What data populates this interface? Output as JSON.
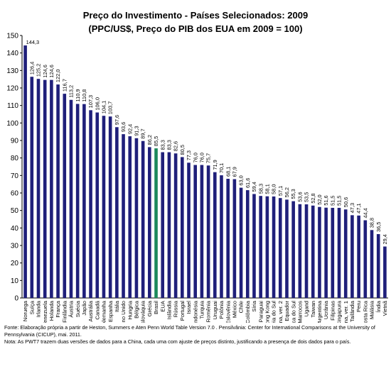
{
  "chart_data": {
    "type": "bar",
    "title": "Preço do Investimento - Países Selecionados: 2009",
    "subtitle": "(PPC/US$, Preço do PIB dos EUA em 2009 = 100)",
    "categories": [
      "Noruega",
      "Suíça",
      "Irlanda",
      "Venezuela",
      "Holanda",
      "França",
      "Finlândia",
      "Áustria",
      "Suécia",
      "Japão",
      "Austrália",
      "Canadá",
      "Alemanha",
      "Espanha",
      "Itália",
      "Reino Unido",
      "Hungria",
      "Bélgica",
      "Eslováquia",
      "Grécia",
      "Brasil",
      "EUA",
      "Islândia",
      "Rússia",
      "Portugal",
      "Israel",
      "Indonésia",
      "Turquia",
      "Romênia",
      "Uruguai",
      "Polônia",
      "Eslovênia",
      "México",
      "Chile",
      "Colômbia",
      "Síria",
      "Paraguai",
      "Hong Kong",
      "Coréia do Sul",
      "China, ver. 2",
      "Equador",
      "África do Sul",
      "Marrocos",
      "Ugand",
      "Taiwan",
      "Argentina",
      "Ucrânia",
      "Filipinas",
      "Cingapura",
      "China, ver. 1",
      "Tailândia",
      "Peru",
      "Costa Rica",
      "Malásia",
      "Índia",
      "Vietnã"
    ],
    "values": [
      144.3,
      126.4,
      125.2,
      124.6,
      124.6,
      122.0,
      116.7,
      113.2,
      110.9,
      110.8,
      107.3,
      106.0,
      104.1,
      103.7,
      97.6,
      93.6,
      92.4,
      91.3,
      89.7,
      86.2,
      85.5,
      83.3,
      83.3,
      82.6,
      80.5,
      77.3,
      76.0,
      76.0,
      75.7,
      71.9,
      70.1,
      68.1,
      67.9,
      63.0,
      61.6,
      59.4,
      58.3,
      58.1,
      58.0,
      57.1,
      56.2,
      55.3,
      53.6,
      53.5,
      52.8,
      52.0,
      51.6,
      51.5,
      51.5,
      50.6,
      47.3,
      47.1,
      44.4,
      38.8,
      36.5,
      29.4
    ],
    "value_labels": [
      "144,3",
      "126,4",
      "125,2",
      "124,6",
      "124,6",
      "122,0",
      "116,7",
      "113,2",
      "110,9",
      "110,8",
      "107,3",
      "106,0",
      "104,1",
      "103,7",
      "97,6",
      "93,6",
      "92,4",
      "91,3",
      "89,7",
      "86,2",
      "85,5",
      "83,3",
      "83,3",
      "82,6",
      "80,5",
      "77,3",
      "76,0",
      "76,0",
      "75,7",
      "71,9",
      "70,1",
      "68,1",
      "67,9",
      "63,0",
      "61,6",
      "59,4",
      "58,3",
      "58,1",
      "58,0",
      "57,1",
      "56,2",
      "55,3",
      "53,6",
      "53,5",
      "52,8",
      "52,0",
      "51,6",
      "51,5",
      "51,5",
      "50,6",
      "47,3",
      "47,1",
      "44,4",
      "38,8",
      "36,5",
      "29,4"
    ],
    "highlight_category": "Brasil",
    "y_ticks": [
      "0",
      "10",
      "20",
      "30",
      "40",
      "50",
      "60",
      "70",
      "80",
      "90",
      "100",
      "110",
      "120",
      "130",
      "140",
      "150"
    ],
    "ylim": [
      0,
      150
    ],
    "grid": false,
    "colors": {
      "bar": "#1f1f7a",
      "highlight": "#1b8a5a",
      "axis": "#000000"
    }
  },
  "notes": {
    "fonte": "Fonte: Elaboração própria a partir de Heston, Summers e Aten Penn World Table Version 7.0 . Pensilvânia: Center for International Comparisons at the University of Pennsylvania (CICUP), mai. 2011.",
    "nota": "Nota: As PWT7 trazem duas versões de dados para a China, cada uma com ajuste de preços distinto, justificando a presença de dois dados para o país."
  }
}
